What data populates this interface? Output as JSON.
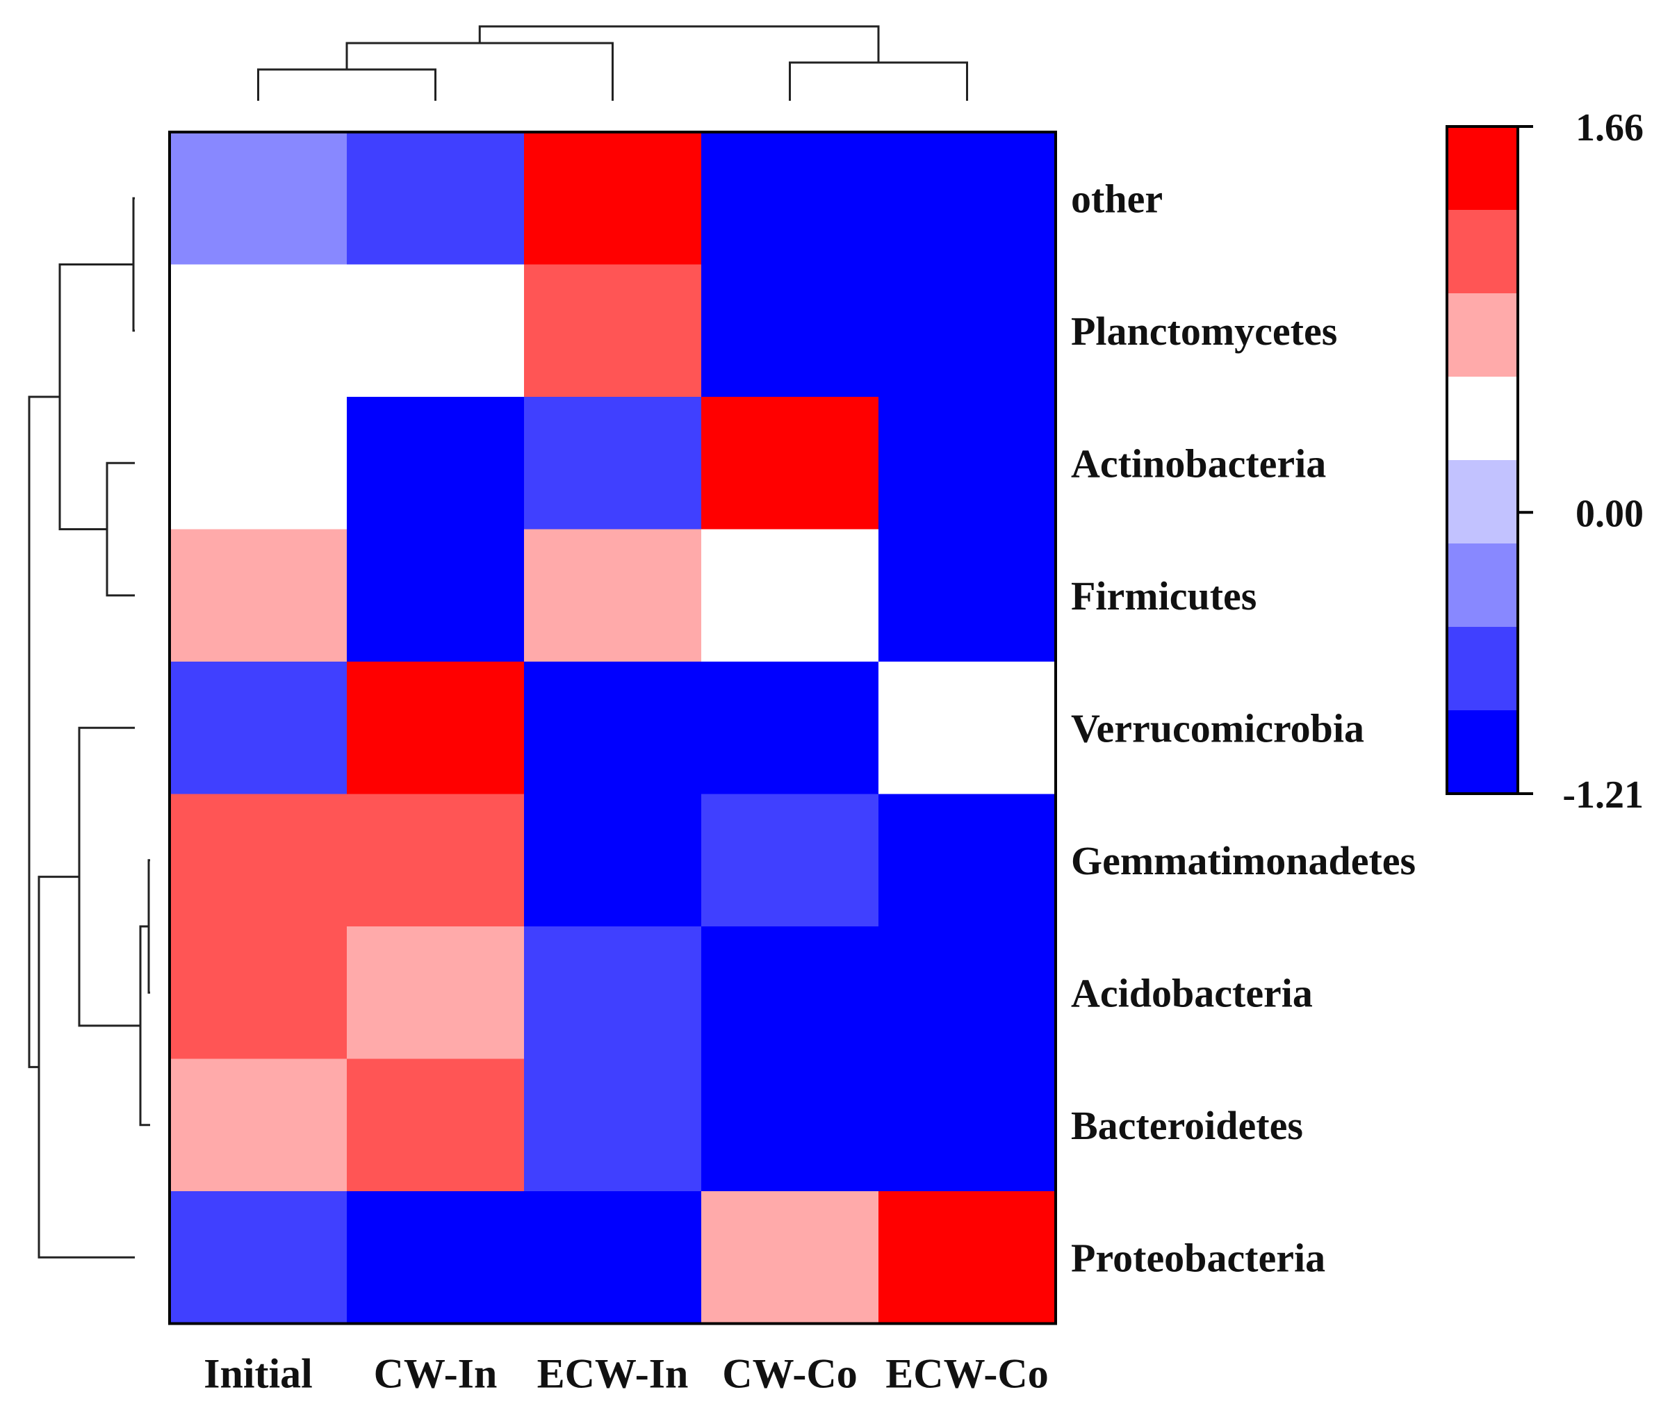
{
  "chart_data": {
    "type": "heatmap",
    "title": "",
    "columns": [
      "Initial",
      "CW-In",
      "ECW-In",
      "CW-Co",
      "ECW-Co"
    ],
    "rows": [
      "other",
      "Planctomycetes",
      "Actinobacteria",
      "Firmicutes",
      "Verrucomicrobia",
      "Gemmatimonadetes",
      "Acidobacteria",
      "Bacteroidetes",
      "Proteobacteria"
    ],
    "values": [
      [
        -0.45,
        -0.75,
        1.66,
        -0.95,
        -1.21
      ],
      [
        0.0,
        0.0,
        1.15,
        -1.21,
        -1.21
      ],
      [
        0.0,
        -0.95,
        -0.75,
        1.66,
        -1.21
      ],
      [
        0.7,
        -1.21,
        0.7,
        0.0,
        -1.21
      ],
      [
        -0.75,
        1.66,
        -0.95,
        -1.21,
        0.0
      ],
      [
        1.15,
        1.15,
        -0.95,
        -0.75,
        -1.21
      ],
      [
        1.15,
        0.7,
        -0.75,
        -0.95,
        -1.21
      ],
      [
        0.7,
        1.15,
        -0.75,
        -0.95,
        -1.21
      ],
      [
        -0.75,
        -0.95,
        -1.21,
        0.7,
        1.66
      ]
    ],
    "color_scale": {
      "min": -1.21,
      "max": 1.66,
      "tick_labels": [
        "1.66",
        "0.00",
        "-1.21"
      ],
      "tick_values": [
        1.66,
        0.0,
        -1.21
      ],
      "bins": [
        {
          "from": -1.21,
          "to": -0.85,
          "color": "#0000ff"
        },
        {
          "from": -0.85,
          "to": -0.55,
          "color": "#4040ff"
        },
        {
          "from": -0.55,
          "to": -0.3,
          "color": "#8888ff"
        },
        {
          "from": -0.3,
          "to": -0.1,
          "color": "#c2c2ff"
        },
        {
          "from": -0.1,
          "to": 0.3,
          "color": "#ffffff"
        },
        {
          "from": 0.3,
          "to": 0.9,
          "color": "#ffaaaa"
        },
        {
          "from": 0.9,
          "to": 1.4,
          "color": "#ff5555"
        },
        {
          "from": 1.4,
          "to": 1.66,
          "color": "#ff0000"
        }
      ]
    },
    "column_dendrogram": "((((Initial, CW-In), ECW-In), (CW-Co, ECW-Co)))",
    "row_dendrogram": "((((other, Planctomycetes), (Actinobacteria, Firmicutes)), ((Verrucomicrobia, ((Gemmatimonadetes, Acidobacteria), Bacteroidetes)), Proteobacteria)))",
    "legend_position": "right"
  }
}
